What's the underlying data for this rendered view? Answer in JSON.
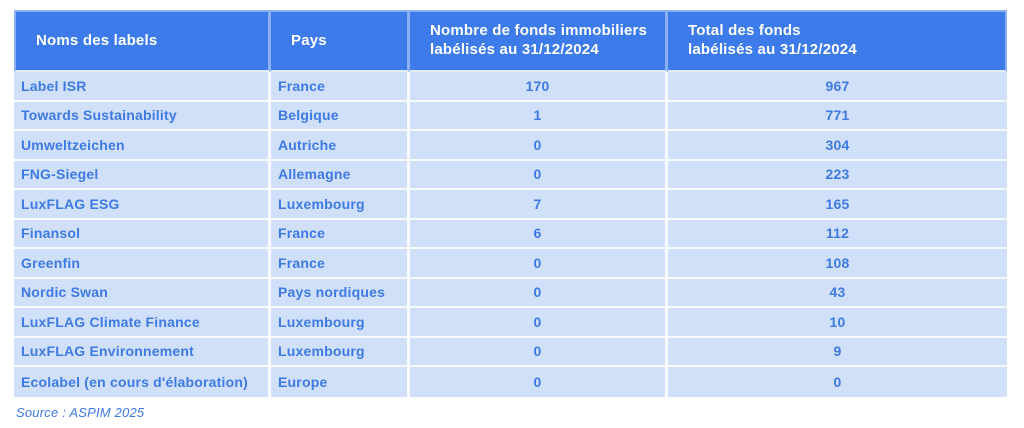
{
  "chart_data": {
    "type": "table",
    "columns": [
      "Noms des labels",
      "Pays",
      "Nombre de fonds immobiliers labélisés au 31/12/2024",
      "Total des fonds labélisés au 31/12/2024"
    ],
    "rows": [
      [
        "Label ISR",
        "France",
        170,
        967
      ],
      [
        "Towards Sustainability",
        "Belgique",
        1,
        771
      ],
      [
        "Umweltzeichen",
        "Autriche",
        0,
        304
      ],
      [
        "FNG-Siegel",
        "Allemagne",
        0,
        223
      ],
      [
        "LuxFLAG ESG",
        "Luxembourg",
        7,
        165
      ],
      [
        "Finansol",
        "France",
        6,
        112
      ],
      [
        "Greenfin",
        "France",
        0,
        108
      ],
      [
        "Nordic Swan",
        "Pays nordiques",
        0,
        43
      ],
      [
        "LuxFLAG Climate Finance",
        "Luxembourg",
        0,
        10
      ],
      [
        "LuxFLAG Environnement",
        "Luxembourg",
        0,
        9
      ],
      [
        "Ecolabel (en cours d'élaboration)",
        "Europe",
        0,
        0
      ]
    ],
    "source": "Source : ASPIM 2025"
  },
  "table": {
    "columns": [
      {
        "label": "Noms des labels"
      },
      {
        "label": "Pays"
      },
      {
        "label": "Nombre de fonds immobiliers\nlabélisés au 31/12/2024"
      },
      {
        "label": "Total des fonds\nlabélisés au 31/12/2024"
      }
    ],
    "rows": [
      {
        "label": "Label ISR",
        "country": "France",
        "funds": "170",
        "total": "967"
      },
      {
        "label": "Towards Sustainability",
        "country": "Belgique",
        "funds": "1",
        "total": "771"
      },
      {
        "label": "Umweltzeichen",
        "country": "Autriche",
        "funds": "0",
        "total": "304"
      },
      {
        "label": "FNG-Siegel",
        "country": "Allemagne",
        "funds": "0",
        "total": "223"
      },
      {
        "label": "LuxFLAG ESG",
        "country": "Luxembourg",
        "funds": "7",
        "total": "165"
      },
      {
        "label": "Finansol",
        "country": "France",
        "funds": "6",
        "total": "112"
      },
      {
        "label": "Greenfin",
        "country": "France",
        "funds": "0",
        "total": "108"
      },
      {
        "label": "Nordic Swan",
        "country": "Pays nordiques",
        "funds": "0",
        "total": "43"
      },
      {
        "label": "LuxFLAG Climate Finance",
        "country": "Luxembourg",
        "funds": "0",
        "total": "10"
      },
      {
        "label": "LuxFLAG Environnement",
        "country": "Luxembourg",
        "funds": "0",
        "total": "9"
      },
      {
        "label": "Ecolabel (en cours d'élaboration)",
        "country": "Europe",
        "funds": "0",
        "total": "0"
      }
    ]
  },
  "source": "Source : ASPIM 2025",
  "colors": {
    "header_bg": "#3C7BE9",
    "header_text": "#FFFFFF",
    "row_bg": "#CFE0F8",
    "row_text": "#3F7AE4",
    "page_bg": "#FFFFFF"
  }
}
